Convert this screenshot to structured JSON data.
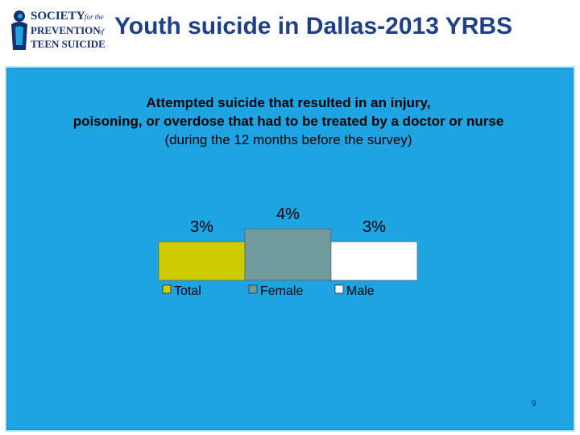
{
  "header": {
    "title": "Youth suicide in Dallas-2013 YRBS",
    "logo": {
      "line1": "SOCIETY",
      "line1_small": "for the",
      "line2": "PREVENTION",
      "line2_small": "of",
      "line3": "TEEN SUICIDE"
    }
  },
  "chart_data": {
    "type": "bar",
    "title_line1": "Attempted suicide that resulted in an injury,",
    "title_line2": "poisoning, or overdose that had to be treated by a doctor or nurse",
    "subtitle": "(during the 12 months before the survey)",
    "categories": [
      "Total",
      "Female",
      "Male"
    ],
    "values": [
      3,
      4,
      3
    ],
    "data_labels": [
      "3%",
      "4%",
      "3%"
    ],
    "colors": [
      "#cccc00",
      "#6f9c9a",
      "#ffffff"
    ],
    "ylim": [
      0,
      4
    ],
    "grid": false,
    "legend": "bottom"
  },
  "footer": {
    "page_number": "9"
  }
}
